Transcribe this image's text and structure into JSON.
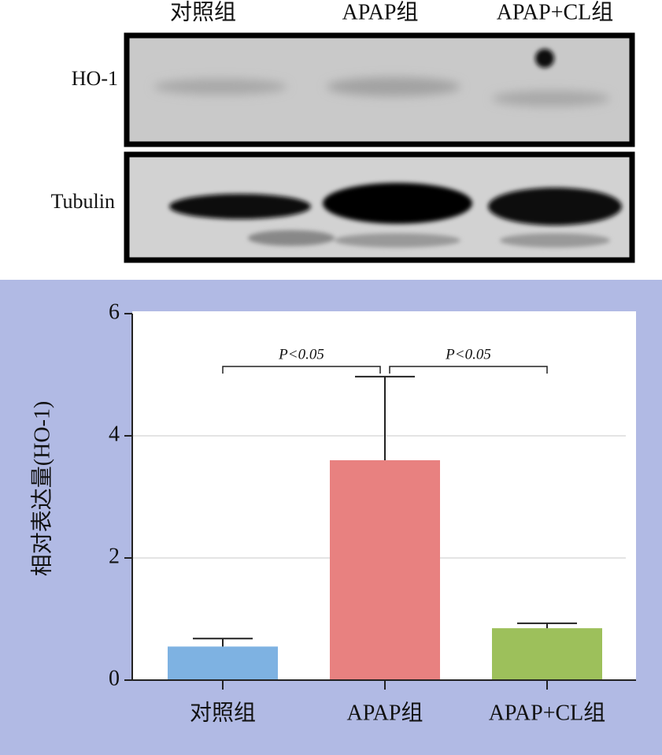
{
  "blot": {
    "rows": [
      "HO-1",
      "Tubulin"
    ]
  },
  "chart_data": {
    "type": "bar",
    "y_label": "相对表达量(HO-1)",
    "categories": [
      "对照组",
      "APAP组",
      "APAP+CL组"
    ],
    "values": [
      0.55,
      3.6,
      0.85
    ],
    "errors": [
      0.13,
      1.37,
      0.08
    ],
    "colors": [
      "#7eb2e2",
      "#e88180",
      "#9dc05b"
    ],
    "ylim": [
      0,
      6
    ],
    "yticks": [
      0,
      2,
      4,
      6
    ],
    "grid": true,
    "annotations": [
      "P<0.05",
      "P<0.05"
    ]
  }
}
